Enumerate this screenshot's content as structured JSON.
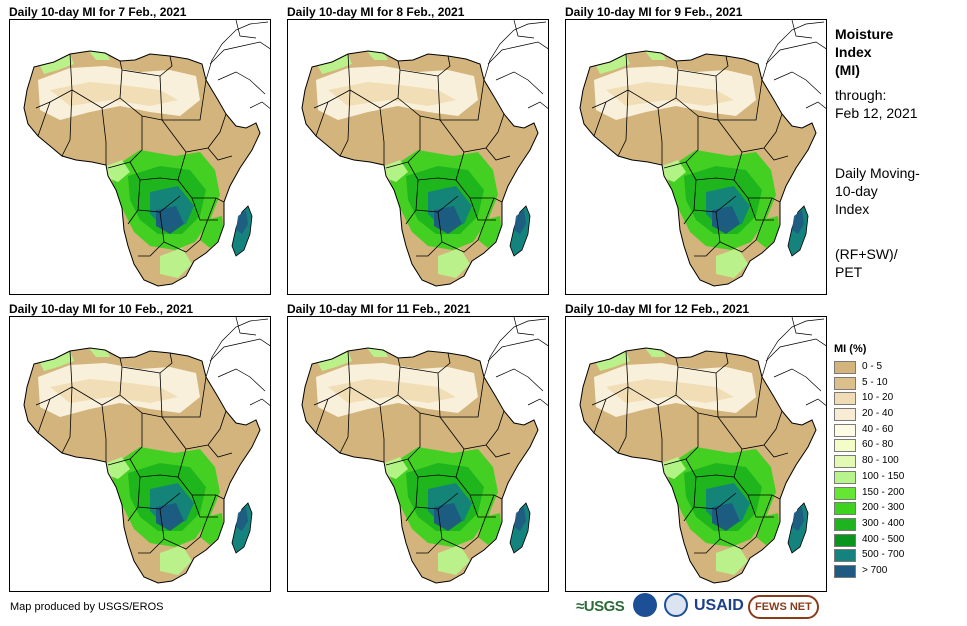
{
  "panels": [
    {
      "title": "Daily 10-day MI for 7 Feb., 2021"
    },
    {
      "title": "Daily 10-day MI for 8 Feb., 2021"
    },
    {
      "title": "Daily 10-day MI for 9 Feb., 2021"
    },
    {
      "title": "Daily 10-day MI for 10 Feb., 2021"
    },
    {
      "title": "Daily 10-day MI for 11 Feb., 2021"
    },
    {
      "title": "Daily 10-day MI for 12 Feb., 2021"
    }
  ],
  "sidebar": {
    "title_line1": "Moisture",
    "title_line2": "Index",
    "title_line3": "(MI)",
    "through_label": "through:",
    "through_date": "Feb 12, 2021",
    "desc_line1": "Daily Moving-",
    "desc_line2": "10-day",
    "desc_line3": "Index",
    "formula_line1": "(RF+SW)/",
    "formula_line2": "PET"
  },
  "legend": {
    "title": "MI (%)",
    "items": [
      {
        "label": "0 - 5",
        "color": "#d2b47c"
      },
      {
        "label": "5 - 10",
        "color": "#dcc08c"
      },
      {
        "label": "10 - 20",
        "color": "#f0dcb4"
      },
      {
        "label": "20 - 40",
        "color": "#f8ecd4"
      },
      {
        "label": "40 - 60",
        "color": "#fffce6"
      },
      {
        "label": "60 - 80",
        "color": "#f4fcc8"
      },
      {
        "label": "80 - 100",
        "color": "#e2fab4"
      },
      {
        "label": "100 - 150",
        "color": "#b8f48c"
      },
      {
        "label": "150 - 200",
        "color": "#64e632"
      },
      {
        "label": "200 - 300",
        "color": "#3cd21e"
      },
      {
        "label": "300 - 400",
        "color": "#1eb41e"
      },
      {
        "label": "400 - 500",
        "color": "#0a961e"
      },
      {
        "label": "500 - 700",
        "color": "#14827d"
      },
      {
        "label": "> 700",
        "color": "#1e5a82"
      }
    ]
  },
  "footer": {
    "credit": "Map produced by USGS/EROS"
  },
  "logos": {
    "usgs": "≈USGS",
    "noaa": "NOAA",
    "dhs": "Homeland Security",
    "usaid": "USAID",
    "fews": "FEWS NET"
  },
  "colors": {
    "dry": "#d2b47c",
    "semi_dry": "#f0dcb4",
    "very_dry_light": "#fbf3e0",
    "wet_mid": "#3cd21e",
    "wet_high": "#1eb41e",
    "wet_very_high": "#14827d",
    "wet_max": "#1e5a82",
    "light_green": "#b8f48c",
    "border": "#000000"
  }
}
